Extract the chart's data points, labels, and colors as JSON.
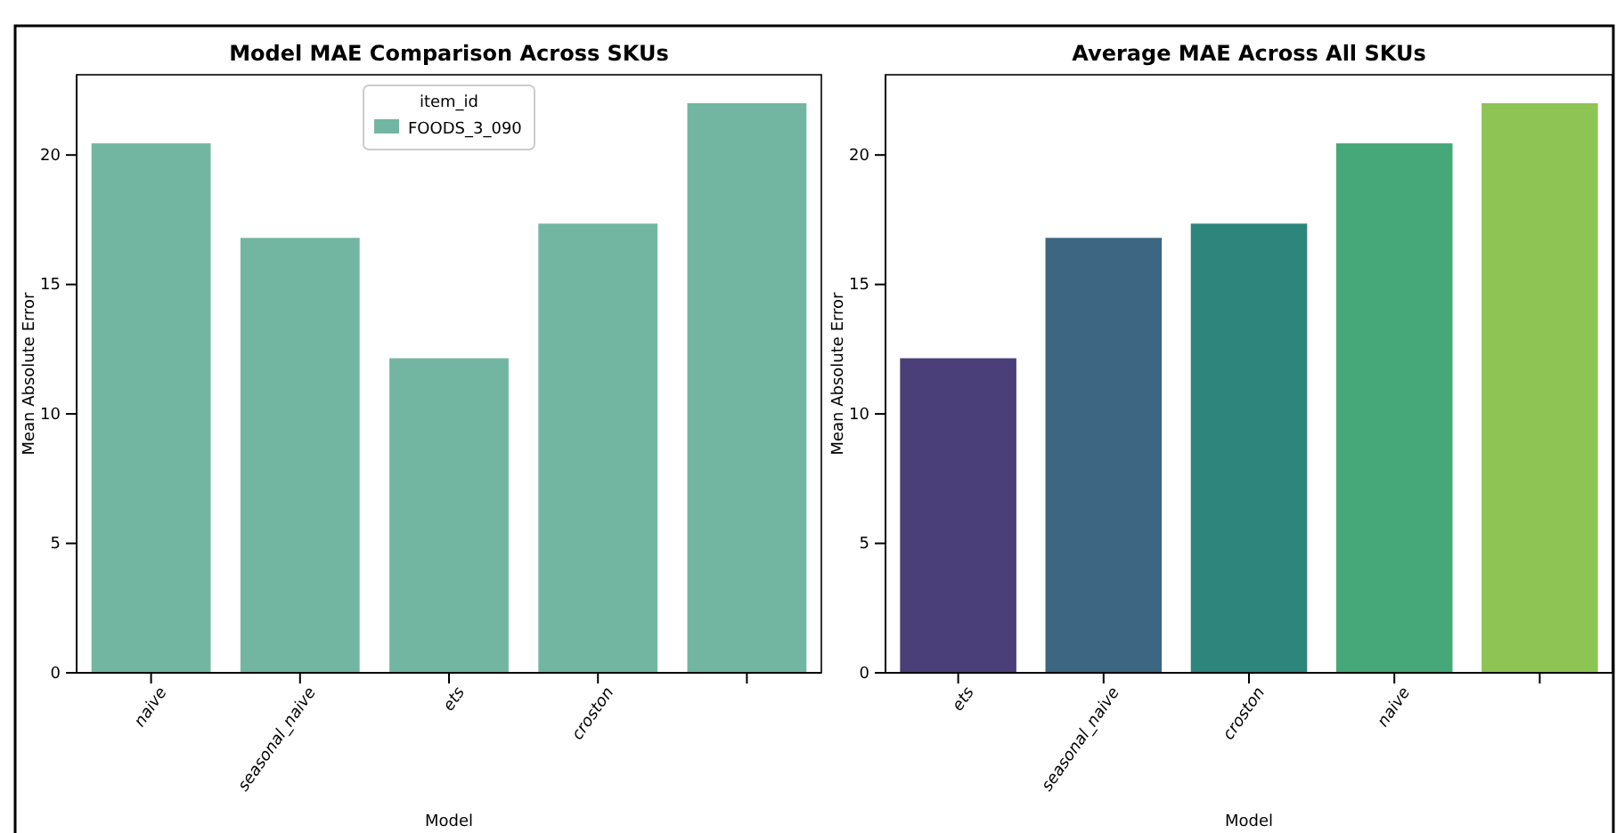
{
  "chart_data": [
    {
      "type": "bar",
      "title": "Model MAE Comparison Across SKUs",
      "xlabel": "Model",
      "ylabel": "Mean Absolute Error",
      "categories": [
        "naive",
        "seasonal_naive",
        "ets",
        "croston",
        null
      ],
      "series": [
        {
          "name": "FOODS_3_090",
          "color": "#72b6a1",
          "values": [
            20.45,
            16.8,
            12.15,
            17.35,
            22.0
          ]
        }
      ],
      "legend_title": "item_id",
      "legend": "top",
      "ylim": [
        0,
        23.1
      ],
      "yticks": [
        0,
        5,
        10,
        15,
        20
      ]
    },
    {
      "type": "bar",
      "title": "Average MAE Across All SKUs",
      "xlabel": "Model",
      "ylabel": "Mean Absolute Error",
      "categories": [
        "ets",
        "seasonal_naive",
        "croston",
        "naive",
        null
      ],
      "values": [
        12.15,
        16.8,
        17.35,
        20.45,
        22.0
      ],
      "colors": [
        "#4a3f78",
        "#3d6683",
        "#2d857c",
        "#46a878",
        "#8dc454"
      ],
      "ylim": [
        0,
        23.1
      ],
      "yticks": [
        0,
        5,
        10,
        15,
        20
      ]
    }
  ]
}
